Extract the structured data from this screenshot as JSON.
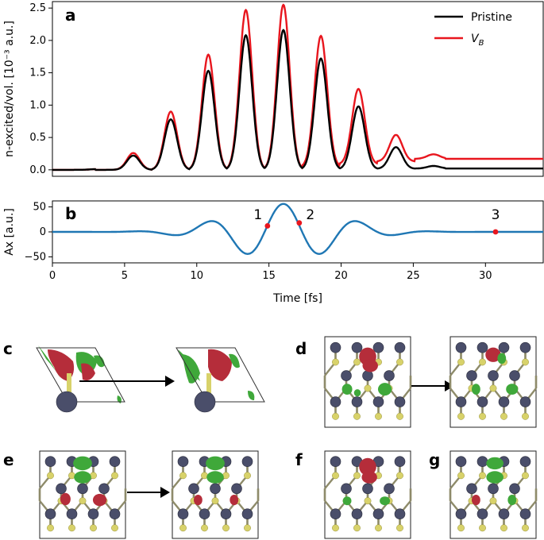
{
  "panels": {
    "a": "a",
    "b": "b",
    "c": "c",
    "d": "d",
    "e": "e",
    "f": "f",
    "g": "g"
  },
  "chart_data": [
    {
      "type": "line",
      "panel": "a",
      "ylabel": "n-excited/vol. [10⁻³ a.u.]",
      "ylim": [
        -0.1,
        2.6
      ],
      "yticks": [
        "0.0",
        "0.5",
        "1.0",
        "1.5",
        "2.0",
        "2.5"
      ],
      "xlim": [
        0,
        34
      ],
      "legend": "top-right",
      "series": [
        {
          "name": "Pristine",
          "color": "#000000",
          "peaks_fs": [
            5.6,
            8.2,
            10.8,
            13.4,
            16.0,
            18.6,
            21.2,
            23.8,
            26.4
          ],
          "peak_values": [
            0.22,
            0.78,
            1.53,
            2.08,
            2.16,
            1.72,
            0.98,
            0.35,
            0.06
          ],
          "final_value": 0.02
        },
        {
          "name": "V_B",
          "color": "#e8161e",
          "peaks_fs": [
            5.6,
            8.2,
            10.8,
            13.4,
            16.0,
            18.6,
            21.2,
            23.8,
            26.4
          ],
          "peak_values": [
            0.26,
            0.9,
            1.78,
            2.47,
            2.55,
            2.07,
            1.25,
            0.54,
            0.24
          ],
          "final_value": 0.17
        }
      ]
    },
    {
      "type": "line",
      "panel": "b",
      "xlabel": "Time [fs]",
      "ylabel": "Ax [a.u.]",
      "ylim": [
        -62,
        62
      ],
      "yticks": [
        "50",
        "0",
        "−50"
      ],
      "xlim": [
        0,
        34
      ],
      "xticks": [
        "0",
        "5",
        "10",
        "15",
        "20",
        "25",
        "30"
      ],
      "series": [
        {
          "name": "Ax",
          "color": "#1f77b4",
          "center_fs": 16.0,
          "peak_amplitude": 56,
          "period_fs": 5.2
        }
      ],
      "markers": [
        {
          "label": "1",
          "x": 14.9,
          "y": 12
        },
        {
          "label": "2",
          "x": 17.1,
          "y": 18
        },
        {
          "label": "3",
          "x": 30.7,
          "y": 0
        }
      ],
      "marker_color": "#e8161e"
    }
  ],
  "legend_labels": {
    "pristine": "Pristine",
    "vb_main": "V",
    "vb_sub": "B"
  }
}
